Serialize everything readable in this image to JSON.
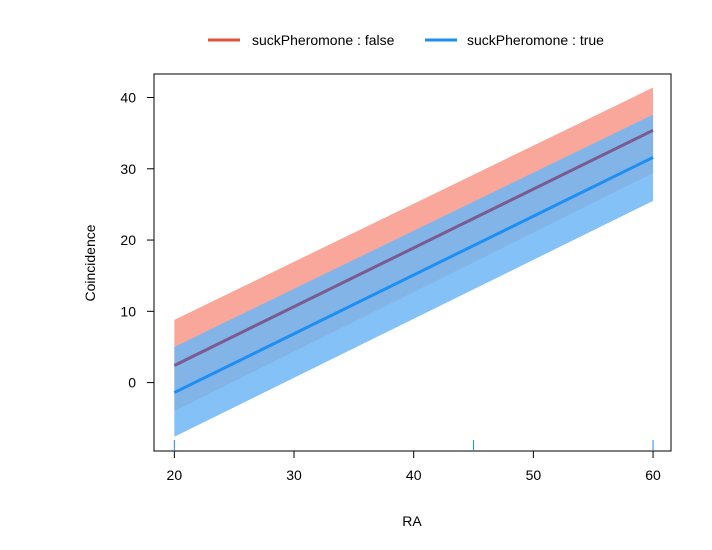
{
  "chart_data": {
    "type": "line",
    "xlabel": "RA",
    "ylabel": "Coincidence",
    "xlim": [
      18.3,
      61.5
    ],
    "ylim": [
      -9.6,
      43.3
    ],
    "x_ticks": [
      20,
      30,
      40,
      50,
      60
    ],
    "y_ticks": [
      0,
      10,
      20,
      30,
      40
    ],
    "rug_x": [
      20,
      45,
      60
    ],
    "grid": false,
    "legend_position": "top",
    "series": [
      {
        "name": "suckPheromone : false",
        "color": "#e0533b",
        "band_color": "#f9a79a",
        "x": [
          20,
          60
        ],
        "fit": [
          2.4,
          35.4
        ],
        "lower": [
          -4.0,
          29.4
        ],
        "upper": [
          8.8,
          41.4
        ]
      },
      {
        "name": "suckPheromone : true",
        "color": "#1e8ff2",
        "band_color": "#6db6f6",
        "x": [
          20,
          60
        ],
        "fit": [
          -1.4,
          31.6
        ],
        "lower": [
          -7.6,
          25.5
        ],
        "upper": [
          5.0,
          37.6
        ]
      }
    ]
  }
}
